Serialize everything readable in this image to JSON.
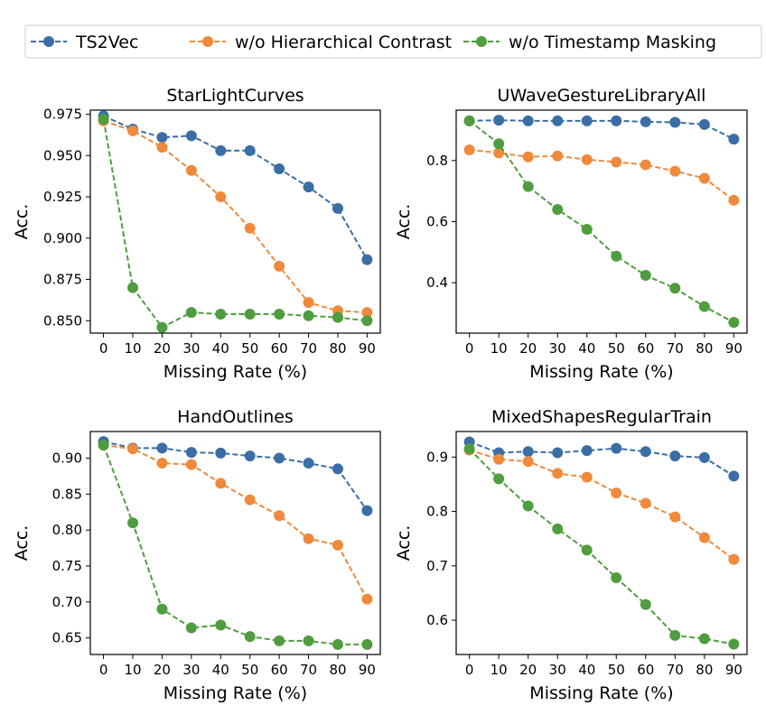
{
  "legend": {
    "position": "top-center",
    "entries": [
      {
        "name": "TS2Vec",
        "color": "#3a6ea5"
      },
      {
        "name": "w/o Hierarchical Contrast",
        "color": "#ef8a3c"
      },
      {
        "name": "w/o Timestamp Masking",
        "color": "#4f9d3e"
      }
    ]
  },
  "chart_data": [
    {
      "type": "line",
      "title": "StarLightCurves",
      "xlabel": "Missing Rate (%)",
      "ylabel": "Acc.",
      "x": [
        0,
        10,
        20,
        30,
        40,
        50,
        60,
        70,
        80,
        90
      ],
      "xticks": [
        "0",
        "10",
        "20",
        "30",
        "40",
        "50",
        "60",
        "70",
        "80",
        "90"
      ],
      "ylim": [
        0.8425,
        0.9775
      ],
      "yticks": [
        0.85,
        0.875,
        0.9,
        0.925,
        0.95,
        0.975
      ],
      "ytick_labels": [
        "0.850",
        "0.875",
        "0.900",
        "0.925",
        "0.950",
        "0.975"
      ],
      "series": [
        {
          "name": "TS2Vec",
          "values": [
            0.974,
            0.966,
            0.961,
            0.962,
            0.953,
            0.953,
            0.942,
            0.931,
            0.918,
            0.887
          ]
        },
        {
          "name": "w/o Hierarchical Contrast",
          "values": [
            0.971,
            0.965,
            0.955,
            0.941,
            0.925,
            0.906,
            0.883,
            0.861,
            0.856,
            0.855
          ]
        },
        {
          "name": "w/o Timestamp Masking",
          "values": [
            0.972,
            0.87,
            0.846,
            0.855,
            0.854,
            0.854,
            0.854,
            0.853,
            0.852,
            0.85
          ]
        }
      ]
    },
    {
      "type": "line",
      "title": "UWaveGestureLibraryAll",
      "xlabel": "Missing Rate (%)",
      "ylabel": "Acc.",
      "x": [
        0,
        10,
        20,
        30,
        40,
        50,
        60,
        70,
        80,
        90
      ],
      "xticks": [
        "0",
        "10",
        "20",
        "30",
        "40",
        "50",
        "60",
        "70",
        "80",
        "90"
      ],
      "ylim": [
        0.235,
        0.965
      ],
      "yticks": [
        0.4,
        0.6,
        0.8
      ],
      "ytick_labels": [
        "0.4",
        "0.6",
        "0.8"
      ],
      "series": [
        {
          "name": "TS2Vec",
          "values": [
            0.93,
            0.932,
            0.93,
            0.93,
            0.93,
            0.93,
            0.927,
            0.925,
            0.918,
            0.87
          ]
        },
        {
          "name": "w/o Hierarchical Contrast",
          "values": [
            0.835,
            0.825,
            0.812,
            0.815,
            0.803,
            0.795,
            0.786,
            0.765,
            0.742,
            0.67
          ]
        },
        {
          "name": "w/o Timestamp Masking",
          "values": [
            0.93,
            0.855,
            0.715,
            0.64,
            0.575,
            0.487,
            0.424,
            0.382,
            0.322,
            0.27
          ]
        }
      ]
    },
    {
      "type": "line",
      "title": "HandOutlines",
      "xlabel": "Missing Rate (%)",
      "ylabel": "Acc.",
      "x": [
        0,
        10,
        20,
        30,
        40,
        50,
        60,
        70,
        80,
        90
      ],
      "xticks": [
        "0",
        "10",
        "20",
        "30",
        "40",
        "50",
        "60",
        "70",
        "80",
        "90"
      ],
      "ylim": [
        0.627,
        0.937
      ],
      "yticks": [
        0.65,
        0.7,
        0.75,
        0.8,
        0.85,
        0.9
      ],
      "ytick_labels": [
        "0.65",
        "0.70",
        "0.75",
        "0.80",
        "0.85",
        "0.90"
      ],
      "series": [
        {
          "name": "TS2Vec",
          "values": [
            0.923,
            0.914,
            0.914,
            0.908,
            0.907,
            0.903,
            0.9,
            0.893,
            0.885,
            0.827
          ]
        },
        {
          "name": "w/o Hierarchical Contrast",
          "values": [
            0.918,
            0.913,
            0.893,
            0.891,
            0.865,
            0.842,
            0.82,
            0.788,
            0.779,
            0.704
          ]
        },
        {
          "name": "w/o Timestamp Masking",
          "values": [
            0.918,
            0.81,
            0.69,
            0.664,
            0.668,
            0.652,
            0.646,
            0.646,
            0.641,
            0.641
          ]
        }
      ]
    },
    {
      "type": "line",
      "title": "MixedShapesRegularTrain",
      "xlabel": "Missing Rate (%)",
      "ylabel": "Acc.",
      "x": [
        0,
        10,
        20,
        30,
        40,
        50,
        60,
        70,
        80,
        90
      ],
      "xticks": [
        "0",
        "10",
        "20",
        "30",
        "40",
        "50",
        "60",
        "70",
        "80",
        "90"
      ],
      "ylim": [
        0.537,
        0.947
      ],
      "yticks": [
        0.6,
        0.7,
        0.8,
        0.9
      ],
      "ytick_labels": [
        "0.6",
        "0.7",
        "0.8",
        "0.9"
      ],
      "series": [
        {
          "name": "TS2Vec",
          "values": [
            0.928,
            0.908,
            0.91,
            0.908,
            0.912,
            0.916,
            0.91,
            0.902,
            0.899,
            0.865
          ]
        },
        {
          "name": "w/o Hierarchical Contrast",
          "values": [
            0.913,
            0.896,
            0.892,
            0.87,
            0.863,
            0.834,
            0.815,
            0.79,
            0.752,
            0.712
          ]
        },
        {
          "name": "w/o Timestamp Masking",
          "values": [
            0.915,
            0.86,
            0.81,
            0.768,
            0.729,
            0.678,
            0.629,
            0.572,
            0.566,
            0.556
          ]
        }
      ]
    }
  ]
}
